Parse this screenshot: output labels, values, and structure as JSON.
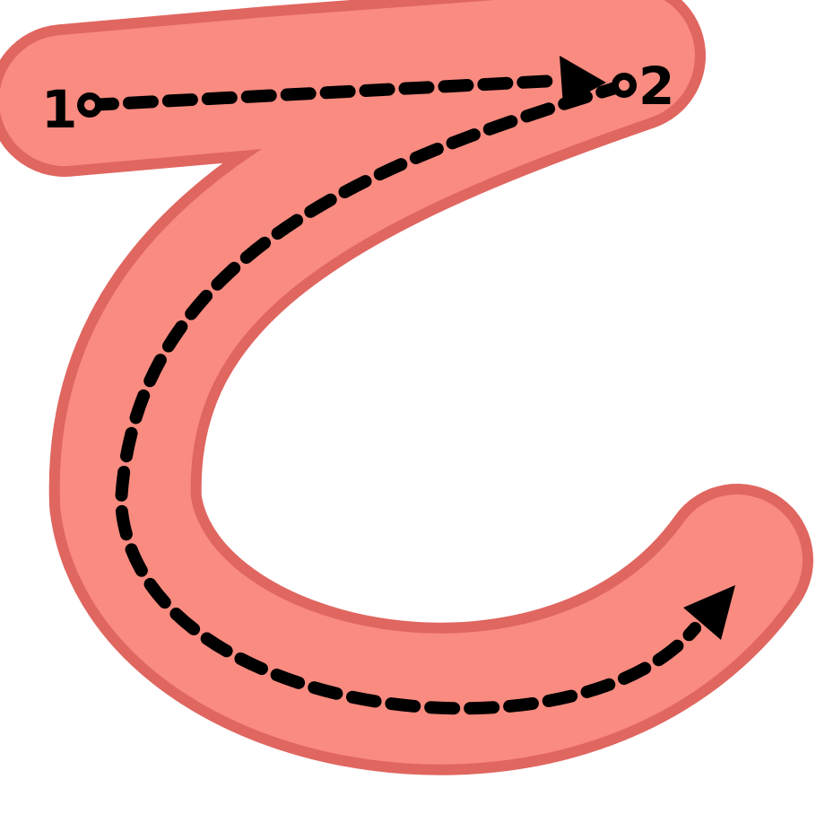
{
  "glyph": {
    "character": "て",
    "stroke_count": 1
  },
  "steps": [
    {
      "label": "1"
    },
    {
      "label": "2"
    }
  ],
  "colors": {
    "fill": "#f98b80",
    "outline": "#e06660",
    "guide": "#000000",
    "background": "#ffffff"
  },
  "icons": {
    "start_marker": "circle-dot-icon",
    "direction_marker": "arrowhead-icon"
  }
}
